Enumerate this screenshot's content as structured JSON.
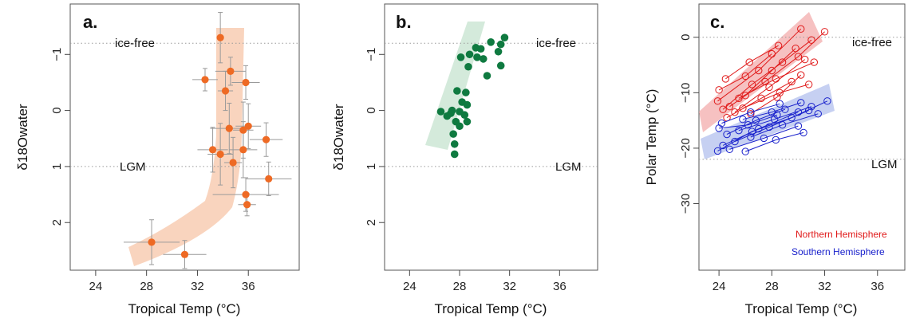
{
  "chart_data": [
    {
      "type": "scatter",
      "panel_label": "a.",
      "xlabel": "Tropical Temp (°C)",
      "ylabel": "δ18Owater",
      "xlim": [
        22,
        40
      ],
      "ylim": [
        2.85,
        -1.9
      ],
      "y_inverted": true,
      "xticks": [
        "24",
        "28",
        "32",
        "36"
      ],
      "yticks": [
        "−1",
        "0",
        "1",
        "2"
      ],
      "reference_lines": [
        {
          "y": -1.2,
          "label": "ice-free"
        },
        {
          "y": 1.0,
          "label": "LGM"
        }
      ],
      "band_color": "#f7c9ae",
      "point_color": "#ee6a24",
      "points": [
        {
          "x": 33.8,
          "y": -1.3,
          "xerr": 0.0,
          "yerr": 0.45
        },
        {
          "x": 32.6,
          "y": -0.55,
          "xerr": 1.0,
          "yerr": 0.2
        },
        {
          "x": 34.6,
          "y": -0.7,
          "xerr": 1.2,
          "yerr": 0.25
        },
        {
          "x": 35.8,
          "y": -0.5,
          "xerr": 1.1,
          "yerr": 0.3
        },
        {
          "x": 34.2,
          "y": -0.35,
          "xerr": 0.6,
          "yerr": 0.35
        },
        {
          "x": 34.5,
          "y": 0.32,
          "xerr": 1.5,
          "yerr": 0.45
        },
        {
          "x": 35.6,
          "y": 0.35,
          "xerr": 0.8,
          "yerr": 0.5
        },
        {
          "x": 36.0,
          "y": 0.28,
          "xerr": 1.0,
          "yerr": 0.4
        },
        {
          "x": 37.4,
          "y": 0.52,
          "xerr": 1.3,
          "yerr": 0.3
        },
        {
          "x": 33.2,
          "y": 0.7,
          "xerr": 1.2,
          "yerr": 0.4
        },
        {
          "x": 33.8,
          "y": 0.78,
          "xerr": 1.0,
          "yerr": 0.55
        },
        {
          "x": 35.6,
          "y": 0.7,
          "xerr": 1.1,
          "yerr": 0.5
        },
        {
          "x": 34.8,
          "y": 0.93,
          "xerr": 0.7,
          "yerr": 0.45
        },
        {
          "x": 37.6,
          "y": 1.22,
          "xerr": 1.8,
          "yerr": 0.3
        },
        {
          "x": 35.8,
          "y": 1.5,
          "xerr": 2.6,
          "yerr": 0.3
        },
        {
          "x": 35.9,
          "y": 1.68,
          "xerr": 0.7,
          "yerr": 0.2
        },
        {
          "x": 28.4,
          "y": 2.35,
          "xerr": 2.2,
          "yerr": 0.4
        },
        {
          "x": 31.0,
          "y": 2.57,
          "xerr": 1.7,
          "yerr": 0.25
        }
      ]
    },
    {
      "type": "scatter",
      "panel_label": "b.",
      "xlabel": "Tropical Temp (°C)",
      "ylabel": "δ18Owater",
      "xlim": [
        22,
        40
      ],
      "ylim": [
        2.85,
        -1.9
      ],
      "y_inverted": true,
      "xticks": [
        "24",
        "28",
        "32",
        "36"
      ],
      "yticks": [
        "−1",
        "0",
        "1",
        "2"
      ],
      "reference_lines": [
        {
          "y": -1.2,
          "label": "ice-free"
        },
        {
          "y": 1.0,
          "label": "LGM"
        }
      ],
      "band_color": "#cfe8d7",
      "point_color": "#0f7a40",
      "points": [
        {
          "x": 31.6,
          "y": -1.3
        },
        {
          "x": 31.3,
          "y": -1.18
        },
        {
          "x": 31.1,
          "y": -1.05
        },
        {
          "x": 30.5,
          "y": -1.22
        },
        {
          "x": 29.7,
          "y": -1.1
        },
        {
          "x": 29.3,
          "y": -1.12
        },
        {
          "x": 28.8,
          "y": -1.0
        },
        {
          "x": 28.1,
          "y": -0.95
        },
        {
          "x": 29.4,
          "y": -0.95
        },
        {
          "x": 29.9,
          "y": -0.92
        },
        {
          "x": 31.3,
          "y": -0.8
        },
        {
          "x": 28.7,
          "y": -0.78
        },
        {
          "x": 30.2,
          "y": -0.62
        },
        {
          "x": 27.8,
          "y": -0.35
        },
        {
          "x": 28.5,
          "y": -0.32
        },
        {
          "x": 28.2,
          "y": -0.15
        },
        {
          "x": 28.6,
          "y": -0.1
        },
        {
          "x": 27.4,
          "y": 0.0
        },
        {
          "x": 28.0,
          "y": 0.02
        },
        {
          "x": 27.3,
          "y": 0.05
        },
        {
          "x": 26.5,
          "y": 0.02
        },
        {
          "x": 28.4,
          "y": 0.08
        },
        {
          "x": 27.0,
          "y": 0.1
        },
        {
          "x": 27.7,
          "y": 0.2
        },
        {
          "x": 28.6,
          "y": 0.2
        },
        {
          "x": 28.0,
          "y": 0.28
        },
        {
          "x": 27.5,
          "y": 0.42
        },
        {
          "x": 27.6,
          "y": 0.6
        },
        {
          "x": 27.6,
          "y": 0.78
        }
      ]
    },
    {
      "type": "line",
      "panel_label": "c.",
      "xlabel": "Tropical Temp (°C)",
      "ylabel": "Polar Temp (°C)",
      "xlim": [
        22,
        40
      ],
      "ylim": [
        -42,
        6
      ],
      "xticks": [
        "24",
        "28",
        "32",
        "36"
      ],
      "yticks": [
        "0",
        "−10",
        "−20",
        "−30"
      ],
      "reference_lines": [
        {
          "y": 0,
          "label": "ice-free"
        },
        {
          "y": -22,
          "label": "LGM"
        }
      ],
      "legend_position": "bottom-right",
      "series": [
        {
          "name": "Northern Hemisphere",
          "color": "#e01a1a",
          "band_color": "#f4b6b6",
          "lines": [
            [
              [
                23.9,
                -11.5
              ],
              [
                27.0,
                -6.0
              ],
              [
                30.2,
                1.5
              ]
            ],
            [
              [
                24.3,
                -13.0
              ],
              [
                26.5,
                -8.5
              ],
              [
                28.8,
                -4.5
              ],
              [
                31.0,
                -0.5
              ]
            ],
            [
              [
                24.8,
                -12.5
              ],
              [
                27.5,
                -8.0
              ],
              [
                30.0,
                -3.5
              ],
              [
                32.0,
                1.0
              ]
            ],
            [
              [
                25.2,
                -13.5
              ],
              [
                27.8,
                -9.0
              ],
              [
                30.5,
                -4.0
              ]
            ],
            [
              [
                24.0,
                -9.5
              ],
              [
                26.0,
                -7.0
              ],
              [
                28.0,
                -3.0
              ]
            ],
            [
              [
                24.5,
                -7.5
              ],
              [
                26.3,
                -4.5
              ],
              [
                28.5,
                -1.5
              ]
            ],
            [
              [
                25.5,
                -11.0
              ],
              [
                28.3,
                -7.5
              ],
              [
                31.2,
                -4.5
              ]
            ],
            [
              [
                25.8,
                -12.8
              ],
              [
                28.6,
                -10.0
              ],
              [
                30.8,
                -8.5
              ]
            ],
            [
              [
                24.6,
                -14.5
              ],
              [
                27.2,
                -11.0
              ],
              [
                29.5,
                -8.0
              ]
            ],
            [
              [
                26.0,
                -10.5
              ],
              [
                28.0,
                -6.0
              ],
              [
                29.8,
                -2.0
              ]
            ],
            [
              [
                26.4,
                -13.8
              ],
              [
                28.4,
                -10.8
              ],
              [
                30.2,
                -6.8
              ]
            ]
          ]
        },
        {
          "name": "Southern Hemisphere",
          "color": "#1a22cc",
          "band_color": "#bcc8f0",
          "lines": [
            [
              [
                23.9,
                -20.5
              ],
              [
                26.5,
                -17.0
              ],
              [
                29.5,
                -14.5
              ],
              [
                32.2,
                -11.5
              ]
            ],
            [
              [
                24.3,
                -19.5
              ],
              [
                27.0,
                -16.5
              ],
              [
                30.0,
                -13.5
              ]
            ],
            [
              [
                24.8,
                -20.2
              ],
              [
                27.4,
                -18.2
              ],
              [
                30.0,
                -16.0
              ]
            ],
            [
              [
                25.2,
                -18.8
              ],
              [
                27.8,
                -16.2
              ],
              [
                30.8,
                -13.2
              ]
            ],
            [
              [
                24.2,
                -15.5
              ],
              [
                26.4,
                -13.5
              ],
              [
                28.6,
                -12.0
              ]
            ],
            [
              [
                25.5,
                -16.8
              ],
              [
                28.2,
                -14.8
              ],
              [
                31.0,
                -12.5
              ]
            ],
            [
              [
                26.0,
                -20.6
              ],
              [
                28.3,
                -18.5
              ],
              [
                30.4,
                -17.2
              ]
            ],
            [
              [
                24.6,
                -17.5
              ],
              [
                26.8,
                -15.0
              ],
              [
                29.0,
                -13.0
              ]
            ],
            [
              [
                25.8,
                -14.8
              ],
              [
                28.0,
                -13.5
              ],
              [
                30.2,
                -11.8
              ]
            ],
            [
              [
                26.4,
                -18.0
              ],
              [
                28.8,
                -15.8
              ],
              [
                31.5,
                -13.8
              ]
            ],
            [
              [
                24.0,
                -16.4
              ],
              [
                26.2,
                -15.8
              ],
              [
                28.4,
                -14.0
              ]
            ]
          ]
        }
      ]
    }
  ]
}
